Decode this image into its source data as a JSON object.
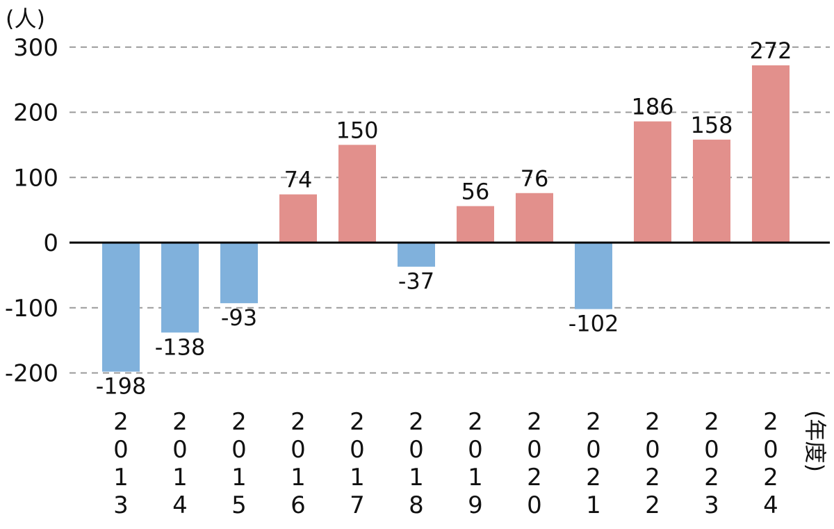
{
  "chart_data": {
    "type": "bar",
    "categories": [
      "2013",
      "2014",
      "2015",
      "2016",
      "2017",
      "2018",
      "2019",
      "2020",
      "2021",
      "2022",
      "2023",
      "2024"
    ],
    "values": [
      -198,
      -138,
      -93,
      74,
      150,
      -37,
      56,
      76,
      -102,
      186,
      158,
      272
    ],
    "y_unit": "(人)",
    "x_unit": "(年度)",
    "ylim": [
      -200,
      300
    ],
    "yticks": [
      300,
      200,
      100,
      0,
      -100,
      -200
    ],
    "ytick_labels": [
      "300",
      "200",
      "100",
      "0",
      "-100",
      "-200"
    ],
    "data_labels": [
      "-198",
      "-138",
      "-93",
      "74",
      "150",
      "-37",
      "56",
      "76",
      "-102",
      "186",
      "158",
      "272"
    ],
    "grid": true,
    "colors": {
      "positive": "#e2908c",
      "negative": "#80b1dc",
      "grid": "#9a9a9a",
      "axis": "#000000"
    }
  }
}
